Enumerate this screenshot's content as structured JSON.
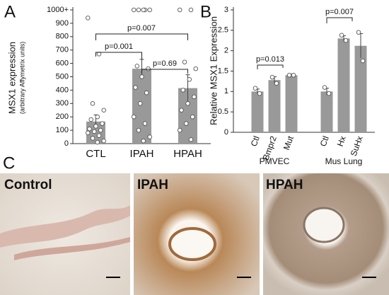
{
  "panel_labels": [
    "A",
    "B",
    "C"
  ],
  "chart_data": [
    {
      "type": "bar",
      "ylabel": "MSX1 expression",
      "ylabel_note": "(arbitrary Affymetrix units)",
      "categories": [
        "CTL",
        "IPAH",
        "HPAH"
      ],
      "values": [
        165,
        560,
        415
      ],
      "errors": [
        50,
        70,
        100
      ],
      "points": [
        [
          940,
          670,
          300,
          250,
          200,
          180,
          150,
          130,
          110,
          100,
          90,
          80,
          60,
          40,
          20,
          10
        ],
        [
          1000,
          1000,
          1000,
          1000,
          1000,
          580,
          560,
          500,
          420,
          380,
          300,
          200,
          150,
          100,
          50,
          20
        ],
        [
          1000,
          1000,
          610,
          560,
          480,
          400,
          350,
          300,
          250,
          200,
          150,
          100,
          30
        ]
      ],
      "color": "#999999",
      "ylim": [
        0,
        1000
      ],
      "yticks": [
        0,
        100,
        200,
        300,
        400,
        500,
        600,
        700,
        800,
        900,
        {
          "value": 1000,
          "label": "1000+"
        }
      ],
      "annotations": [
        "p=0.007",
        "p=0.001",
        "p=0.69"
      ]
    },
    {
      "type": "bar",
      "ylabel": "Relative MSX1 Expression",
      "categories": [
        "Ctl",
        "Bmpr2",
        "Mut",
        "Ctl",
        "Hx",
        "SuHx"
      ],
      "groups": [
        "PMVEC",
        "Mus Lung"
      ],
      "values": [
        1.0,
        1.28,
        1.4,
        1.0,
        2.3,
        2.12
      ],
      "errors": [
        0.06,
        0.08,
        0.03,
        0.08,
        0.07,
        0.3
      ],
      "points": [
        [
          1.08,
          0.95
        ],
        [
          1.35,
          1.2
        ],
        [
          1.4,
          1.4
        ],
        [
          1.1,
          0.95
        ],
        [
          2.38,
          2.25
        ],
        [
          2.45,
          1.75
        ]
      ],
      "color": "#999999",
      "ylim": [
        0,
        3
      ],
      "yticks": [
        0,
        0.5,
        1,
        1.5,
        2,
        2.5,
        3
      ],
      "annotations": [
        "p=0.013",
        "p=0.007"
      ]
    }
  ],
  "histology": [
    "Control",
    "IPAH",
    "HPAH"
  ]
}
